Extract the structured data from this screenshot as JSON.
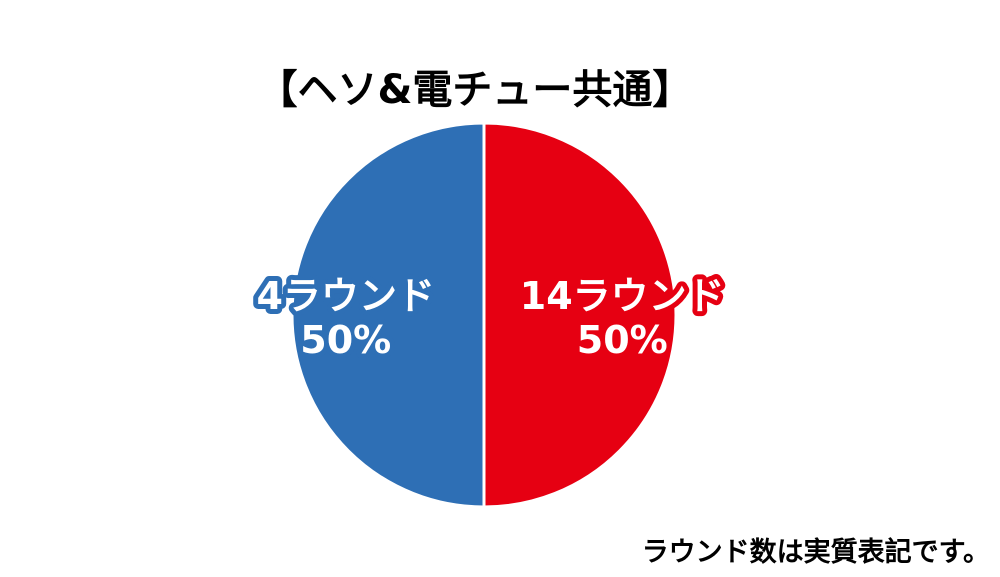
{
  "chart_data": {
    "type": "pie",
    "title": "【ヘソ&電チュー共通】",
    "slices": [
      {
        "label": "14ラウンド",
        "value": 50,
        "value_label": "50%",
        "color": "#e60012"
      },
      {
        "label": "4ラウンド",
        "value": 50,
        "value_label": "50%",
        "color": "#2e6fb5"
      }
    ],
    "start": "top",
    "direction": "clockwise",
    "legend": "none"
  },
  "footnote": "ラウンド数は実質表記です。"
}
